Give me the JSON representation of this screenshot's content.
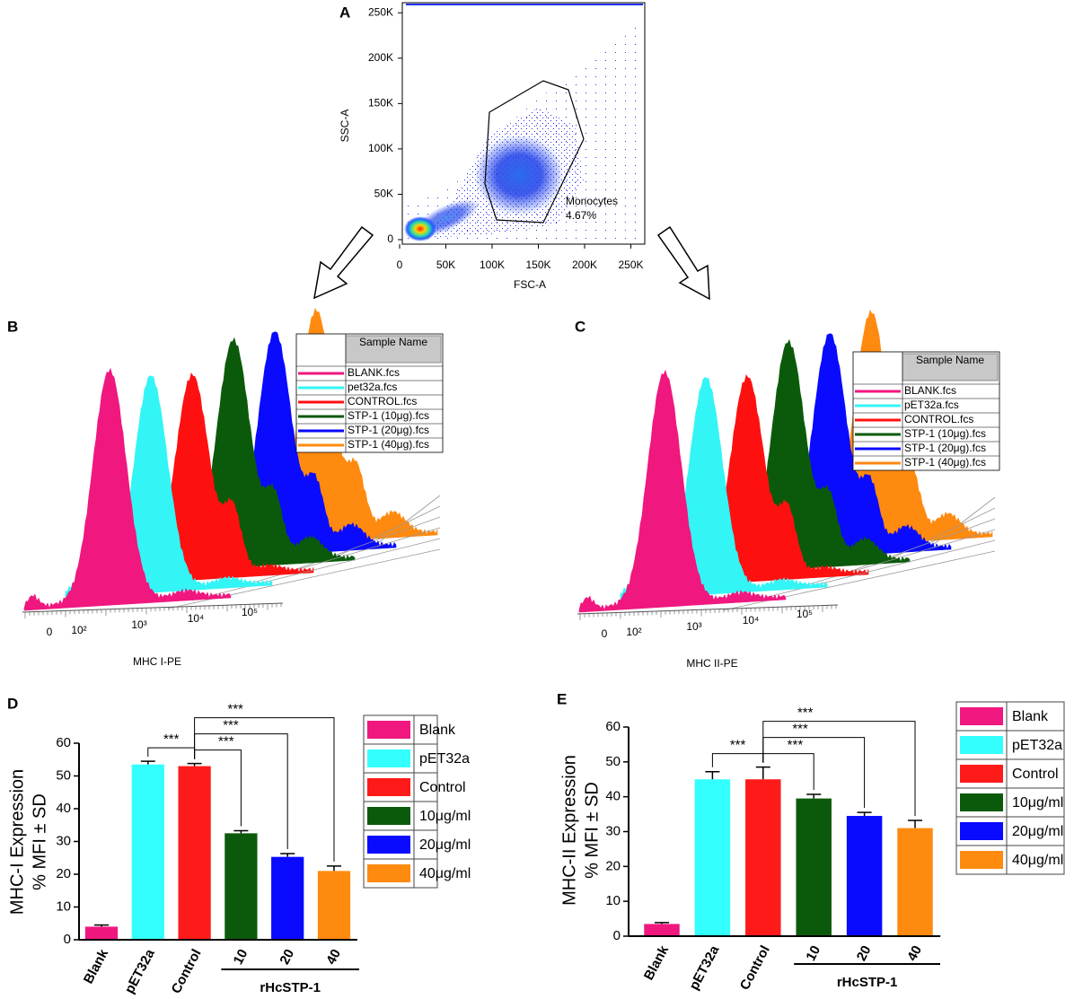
{
  "chart_data": [
    {
      "type": "scatter",
      "panel_label": "A",
      "xlabel": "FSC-A",
      "ylabel": "SSC-A",
      "xlim": [
        0,
        262144
      ],
      "ylim": [
        0,
        262144
      ],
      "xticks": [
        0,
        {
          "value": 50000,
          "label": "50K"
        },
        {
          "value": 100000,
          "label": "100K"
        },
        {
          "value": 150000,
          "label": "150K"
        },
        {
          "value": 200000,
          "label": "200K"
        },
        {
          "value": 250000,
          "label": "250K"
        }
      ],
      "yticks": [
        0,
        {
          "value": 50000,
          "label": "50K"
        },
        {
          "value": 100000,
          "label": "100K"
        },
        {
          "value": 150000,
          "label": "150K"
        },
        {
          "value": 200000,
          "label": "200K"
        },
        {
          "value": 250000,
          "label": "250K"
        }
      ],
      "annotations": [
        "Monocytes",
        "4.67%"
      ]
    },
    {
      "type": "histogram-overlay",
      "panel_label": "B",
      "xlabel": "MHC I-PE",
      "legend_title": "Sample Name",
      "xticks": [
        0,
        {
          "value": 100,
          "label": "10²"
        },
        {
          "value": 1000,
          "label": "10³"
        },
        {
          "value": 10000,
          "label": "10⁴"
        },
        {
          "value": 100000,
          "label": "10⁵"
        }
      ],
      "series": [
        {
          "name": "BLANK.fcs",
          "color": "#f0177f"
        },
        {
          "name": "pet32a.fcs",
          "color": "#33f5f5"
        },
        {
          "name": "CONTROL.fcs",
          "color": "#ff1010"
        },
        {
          "name": "STP-1 (10μg).fcs",
          "color": "#0b5a0b"
        },
        {
          "name": "STP-1 (20μg).fcs",
          "color": "#0a0aff"
        },
        {
          "name": "STP-1 (40μg).fcs",
          "color": "#ff8a10"
        }
      ]
    },
    {
      "type": "histogram-overlay",
      "panel_label": "C",
      "xlabel": "MHC II-PE",
      "legend_title": "Sample Name",
      "xticks": [
        0,
        {
          "value": 100,
          "label": "10²"
        },
        {
          "value": 1000,
          "label": "10³"
        },
        {
          "value": 10000,
          "label": "10⁴"
        },
        {
          "value": 100000,
          "label": "10⁵"
        }
      ],
      "series": [
        {
          "name": "BLANK.fcs",
          "color": "#f0177f"
        },
        {
          "name": "pET32a.fcs",
          "color": "#33f5f5"
        },
        {
          "name": "CONTROL.fcs",
          "color": "#ff1010"
        },
        {
          "name": "STP-1 (10μg).fcs",
          "color": "#0b5a0b"
        },
        {
          "name": "STP-1 (20μg).fcs",
          "color": "#0a0aff"
        },
        {
          "name": "STP-1 (40μg).fcs",
          "color": "#ff8a10"
        }
      ]
    },
    {
      "type": "bar",
      "panel_label": "D",
      "ylabel": [
        "MHC-I Expression",
        "% MFI ± SD"
      ],
      "categories": [
        "Blank",
        "pET32a",
        "Control",
        "10",
        "20",
        "40"
      ],
      "values": [
        4,
        53.5,
        53,
        32.5,
        25.3,
        21
      ],
      "errors": [
        0.5,
        1,
        0.8,
        0.8,
        1,
        1.5
      ],
      "colors": [
        "#f0177f",
        "#33ffff",
        "#ff1a1a",
        "#0b5a0b",
        "#0a0aff",
        "#ff8a10"
      ],
      "legend": [
        "Blank",
        "pET32a",
        "Control",
        "10μg/ml",
        "20μg/ml",
        "40μg/ml"
      ],
      "ylim": [
        0,
        60
      ],
      "yticks": [
        0,
        10,
        20,
        30,
        40,
        50,
        60
      ],
      "group_label": "rHcSTP-1",
      "brackets": [
        {
          "between": [
            "pET32a",
            "Control"
          ],
          "label": "***"
        },
        {
          "between": [
            "Control",
            "10"
          ],
          "label": "***"
        },
        {
          "between": [
            "Control",
            "20"
          ],
          "label": "***"
        },
        {
          "between": [
            "Control",
            "40"
          ],
          "label": "***"
        }
      ]
    },
    {
      "type": "bar",
      "panel_label": "E",
      "ylabel": [
        "MHC-II Expression",
        "% MFI ± SD"
      ],
      "categories": [
        "Blank",
        "pET32a",
        "Control",
        "10",
        "20",
        "40"
      ],
      "values": [
        3.5,
        45,
        45,
        39.5,
        34.5,
        31
      ],
      "errors": [
        0.4,
        2.2,
        3.5,
        1.2,
        1,
        2.2
      ],
      "colors": [
        "#f0177f",
        "#33ffff",
        "#ff1a1a",
        "#0b5a0b",
        "#0a0aff",
        "#ff8a10"
      ],
      "legend": [
        "Blank",
        "pET32a",
        "Control",
        "10μg/ml",
        "20μg/ml",
        "40μg/ml"
      ],
      "ylim": [
        0,
        60
      ],
      "yticks": [
        0,
        10,
        20,
        30,
        40,
        50,
        60
      ],
      "group_label": "rHcSTP-1",
      "brackets": [
        {
          "between": [
            "pET32a",
            "Control"
          ],
          "label": "***"
        },
        {
          "between": [
            "Control",
            "10"
          ],
          "label": "***"
        },
        {
          "between": [
            "Control",
            "20"
          ],
          "label": "***"
        },
        {
          "between": [
            "Control",
            "40"
          ],
          "label": "***"
        }
      ]
    }
  ]
}
